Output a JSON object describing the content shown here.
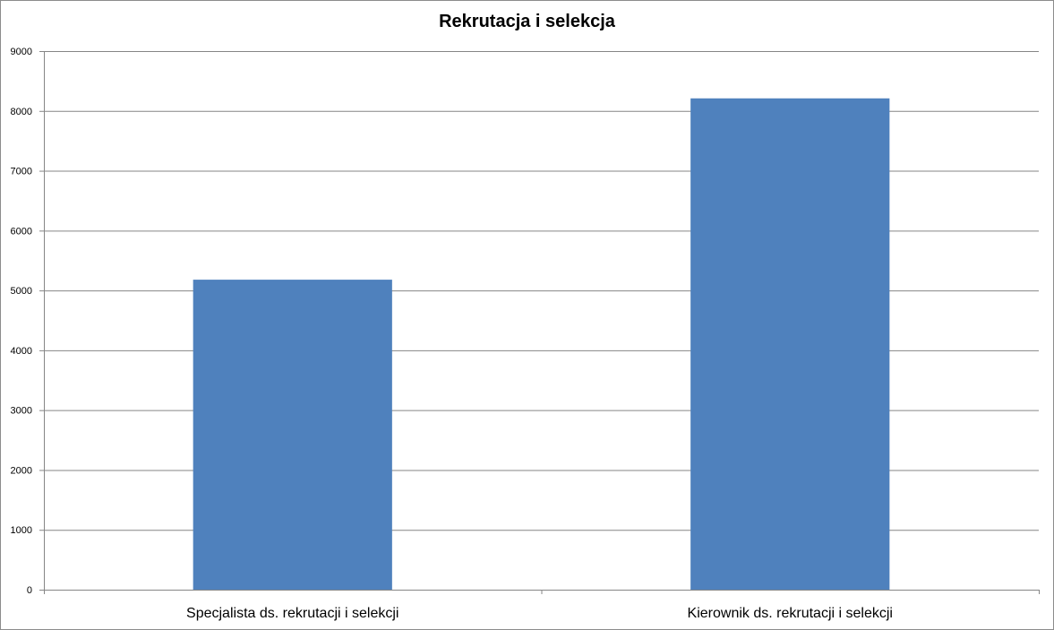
{
  "chart_data": {
    "type": "bar",
    "title": "Rekrutacja i selekcja",
    "xlabel": "",
    "ylabel": "",
    "categories": [
      "Specjalista ds. rekrutacji i selekcji",
      "Kierownik ds. rekrutacji i selekcji"
    ],
    "values": [
      5180,
      8210
    ],
    "ylim": [
      0,
      9000
    ],
    "yticks": [
      "0",
      "1000",
      "2000",
      "3000",
      "4000",
      "5000",
      "6000",
      "7000",
      "8000",
      "9000"
    ],
    "grid": true,
    "legend": "none",
    "bar_color": "#4f81bd"
  }
}
